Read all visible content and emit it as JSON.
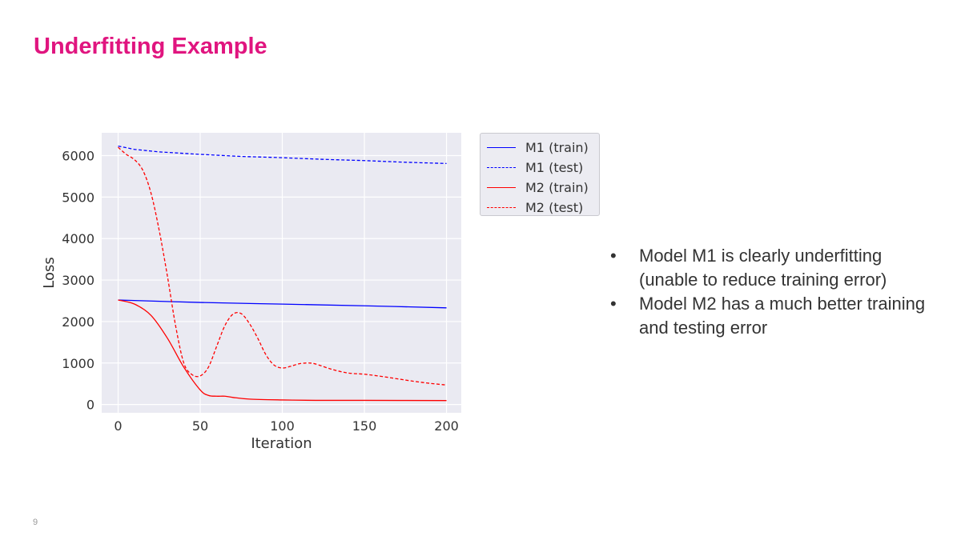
{
  "slide": {
    "title": "Underfitting Example",
    "title_color": "#e0157f",
    "page_number": "9"
  },
  "bullets": [
    "Model M1 is clearly underfitting (unable to reduce training error)",
    "Model M2 has a much better training and testing error"
  ],
  "bullet_glyph": "•",
  "chart_data": {
    "type": "line",
    "title": "",
    "xlabel": "Iteration",
    "ylabel": "Loss",
    "xlim": [
      -10,
      209
    ],
    "ylim": [
      -200,
      6550
    ],
    "xticks": [
      0,
      50,
      100,
      150,
      200
    ],
    "yticks": [
      0,
      1000,
      2000,
      3000,
      4000,
      5000,
      6000
    ],
    "grid": true,
    "background": "#eaeaf2",
    "legend_position": "outside-right",
    "series": [
      {
        "name": "M1 (train)",
        "color": "#0000ff",
        "style": "solid",
        "x": [
          0,
          50,
          100,
          150,
          200
        ],
        "y": [
          2520,
          2460,
          2420,
          2380,
          2330
        ]
      },
      {
        "name": "M1 (test)",
        "color": "#0000ff",
        "style": "dashed",
        "x": [
          0,
          10,
          25,
          50,
          75,
          100,
          125,
          150,
          175,
          200
        ],
        "y": [
          6230,
          6150,
          6090,
          6030,
          5980,
          5950,
          5910,
          5880,
          5840,
          5810
        ],
        "smooth": false
      },
      {
        "name": "M2 (train)",
        "color": "#ff0000",
        "style": "solid",
        "x": [
          0,
          10,
          20,
          30,
          40,
          50,
          55,
          60,
          65,
          70,
          80,
          100,
          120,
          150,
          200
        ],
        "y": [
          2520,
          2420,
          2150,
          1600,
          900,
          350,
          220,
          200,
          200,
          170,
          130,
          110,
          100,
          100,
          95
        ]
      },
      {
        "name": "M2 (test)",
        "color": "#ff0000",
        "style": "dashed",
        "x": [
          0,
          5,
          10,
          15,
          20,
          25,
          30,
          35,
          40,
          45,
          50,
          55,
          60,
          65,
          70,
          75,
          80,
          85,
          90,
          95,
          100,
          105,
          110,
          115,
          120,
          130,
          140,
          150,
          160,
          170,
          180,
          190,
          200
        ],
        "y": [
          6200,
          6030,
          5900,
          5650,
          5100,
          4200,
          3100,
          1900,
          1000,
          720,
          690,
          900,
          1400,
          1900,
          2180,
          2190,
          1950,
          1600,
          1200,
          950,
          880,
          920,
          980,
          1000,
          980,
          850,
          760,
          730,
          680,
          620,
          560,
          510,
          470
        ]
      }
    ]
  }
}
